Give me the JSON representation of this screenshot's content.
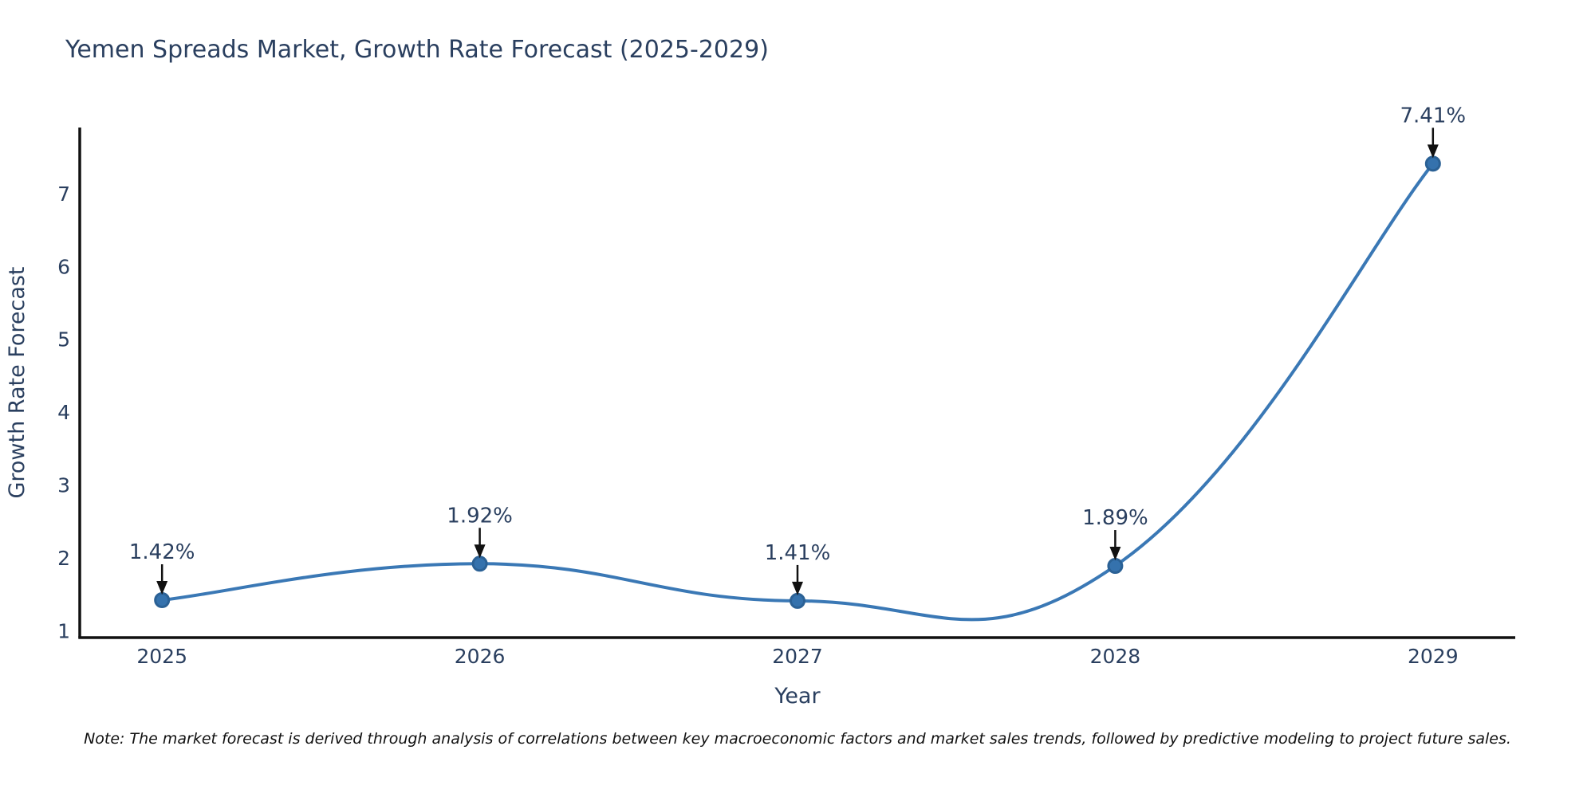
{
  "header": {
    "title": "Yemen Spreads Market, Growth Rate Forecast (2025-2029)"
  },
  "footer": {
    "note": "Note: The market forecast is derived through analysis of correlations between key macroeconomic factors and market sales trends, followed by predictive modeling to project future sales."
  },
  "chart_data": {
    "type": "line",
    "line_shape": "spline",
    "title": "Yemen Spreads Market, Growth Rate Forecast (2025-2029)",
    "xlabel": "Year",
    "ylabel": "Growth Rate Forecast",
    "x": [
      2025,
      2026,
      2027,
      2028,
      2029
    ],
    "series": [
      {
        "name": "Growth Rate Forecast",
        "values": [
          1.42,
          1.92,
          1.41,
          1.89,
          7.41
        ]
      }
    ],
    "point_labels": [
      "1.42%",
      "1.92%",
      "1.41%",
      "1.89%",
      "7.41%"
    ],
    "xticks": [
      2025,
      2026,
      2027,
      2028,
      2029
    ],
    "yticks": [
      1,
      2,
      3,
      4,
      5,
      6,
      7
    ],
    "xlim": [
      2024.741,
      2029.259
    ],
    "ylim": [
      0.906,
      7.906
    ],
    "grid": false,
    "legend": "none",
    "annotation_style": "black-arrow-down-to-point",
    "colors": {
      "line": "#3a78b5",
      "marker_fill": "#3572ad",
      "marker_edge": "#2b6195",
      "axis": "#111111",
      "text": "#2a3f5f",
      "arrow": "#111111",
      "note": "#111111",
      "background": "#ffffff"
    }
  }
}
